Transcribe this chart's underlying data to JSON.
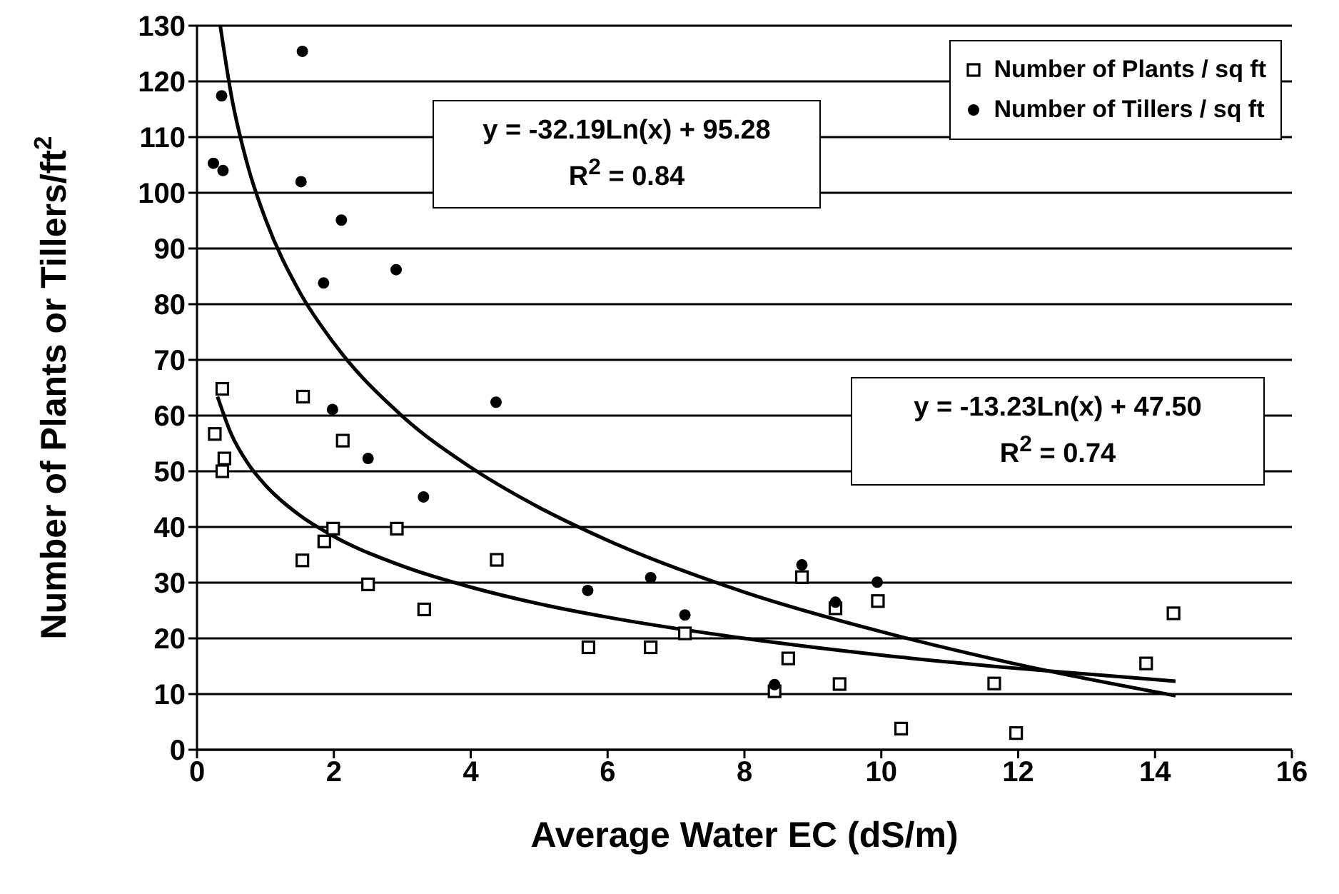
{
  "chart_data": {
    "type": "scatter",
    "xlabel": "Average Water EC (dS/m)",
    "ylabel": "Number of Plants or Tillers/ft$^{2}$",
    "xlim": [
      0,
      16
    ],
    "xticks": [
      0,
      2,
      4,
      6,
      8,
      10,
      12,
      14,
      16
    ],
    "ylim": [
      0,
      130
    ],
    "yticks": [
      0,
      10,
      20,
      30,
      40,
      50,
      60,
      70,
      80,
      90,
      100,
      110,
      120,
      130
    ],
    "grid": "y",
    "legend": "top right",
    "annotations": [
      "y = -32.19Ln(x) + 95.28\nR$^{2}$ = 0.84",
      "y = -13.23Ln(x) + 47.50\nR$^{2}$ = 0.74"
    ],
    "series": [
      {
        "name": "Number of Plants / sq ft",
        "color": "#000000",
        "marker": "square",
        "x": [
          0.37,
          0.26,
          0.4,
          0.37,
          1.55,
          2.13,
          1.99,
          1.86,
          1.54,
          2.92,
          2.5,
          3.32,
          4.38,
          5.72,
          6.63,
          7.13,
          8.44,
          8.64,
          8.84,
          9.33,
          9.39,
          9.95,
          10.29,
          11.65,
          11.97,
          13.87,
          14.27
        ],
        "values": [
          64.8,
          56.7,
          52.3,
          50.0,
          63.4,
          55.5,
          39.7,
          37.4,
          34.0,
          39.7,
          29.7,
          25.2,
          34.1,
          18.4,
          18.4,
          20.9,
          10.5,
          16.4,
          31.0,
          25.4,
          11.8,
          26.7,
          3.8,
          11.9,
          3.0,
          15.5,
          24.5
        ]
      },
      {
        "name": "Number of Tillers / sq ft",
        "color": "#000000",
        "marker": "circle",
        "x": [
          1.54,
          0.36,
          0.24,
          0.38,
          1.52,
          2.11,
          1.85,
          2.91,
          1.98,
          2.5,
          3.31,
          4.37,
          5.71,
          6.63,
          7.13,
          8.44,
          8.84,
          9.33,
          9.94
        ],
        "values": [
          125.4,
          117.4,
          105.3,
          104.0,
          102.0,
          95.1,
          83.8,
          86.2,
          61.1,
          52.3,
          45.4,
          62.4,
          28.6,
          30.9,
          24.2,
          11.7,
          33.2,
          26.5,
          30.1
        ]
      },
      {
        "type": "line",
        "color": "#000000",
        "marker": "none",
        "x": [
          0.34,
          0.5,
          0.75,
          1,
          1.5,
          2,
          3,
          4,
          5,
          6,
          8,
          10,
          12,
          14.3
        ],
        "values": [
          130.0,
          117.6,
          104.5,
          95.3,
          82.2,
          73.0,
          59.9,
          50.7,
          43.5,
          37.6,
          28.3,
          21.2,
          15.3,
          9.7
        ]
      },
      {
        "type": "line",
        "color": "#000000",
        "marker": "none",
        "x": [
          0.3,
          0.5,
          0.75,
          1,
          1.5,
          2,
          3,
          4,
          5,
          6,
          8,
          10,
          12,
          14.3
        ],
        "values": [
          63.4,
          56.7,
          51.3,
          47.5,
          42.1,
          38.3,
          33.0,
          29.2,
          26.2,
          23.8,
          20.0,
          17.0,
          14.6,
          12.3
        ]
      }
    ]
  }
}
